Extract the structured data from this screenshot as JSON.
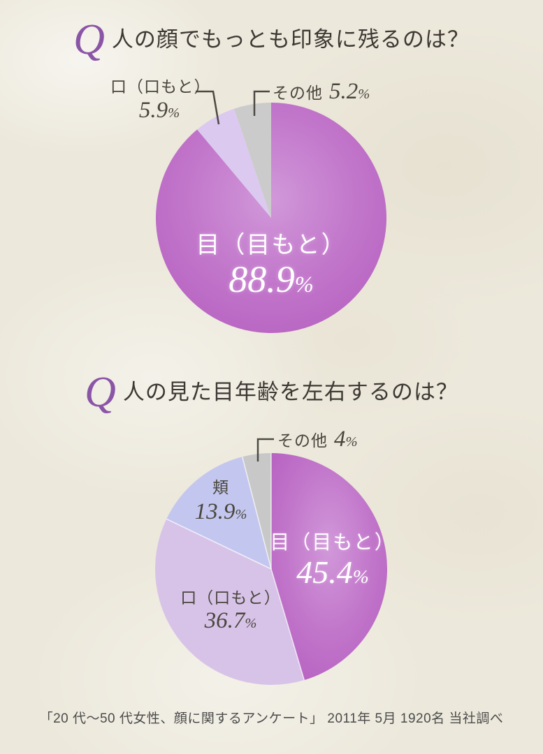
{
  "theme": {
    "background": "#ece8db",
    "title_color": "#3d3833",
    "q_color": "#8a55a7",
    "label_color": "#4a453d",
    "center_text_color": "#ffffff",
    "leader_line_color": "#4d4a45"
  },
  "accent_gradient": [
    "#d198d9",
    "#c277cb",
    "#b763c1"
  ],
  "chart_data": [
    {
      "type": "pie",
      "q_mark": "Q",
      "title": "人の顔でもっとも印象に残るのは？",
      "start_angle": "12-oclock",
      "direction": "clockwise",
      "labels_layout": "largest slice labeled inside, small slices outside with leader lines",
      "slices": [
        {
          "label": "目（目もと）",
          "value": 88.9,
          "number": "88.9",
          "unit": "%",
          "color": "#c06fc8",
          "gradient": true
        },
        {
          "label": "口（口もと）",
          "value": 5.9,
          "number": "5.9",
          "unit": "%",
          "color": "#dbc9f0",
          "gradient": false
        },
        {
          "label": "その他",
          "value": 5.2,
          "number": "5.2",
          "unit": "%",
          "color": "#cbcbcb",
          "gradient": false
        }
      ]
    },
    {
      "type": "pie",
      "q_mark": "Q",
      "title": "人の見た目年齢を左右するのは？",
      "start_angle": "12-oclock",
      "direction": "clockwise",
      "labels_layout": "largest slice labeled inside, others outside; white separators between slices",
      "slices": [
        {
          "label": "目（目もと）",
          "value": 45.4,
          "number": "45.4",
          "unit": "%",
          "color": "#c06fc8",
          "gradient": true
        },
        {
          "label": "口（口もと）",
          "value": 36.7,
          "number": "36.7",
          "unit": "%",
          "color": "#d8c3e8",
          "gradient": false
        },
        {
          "label": "頬",
          "value": 13.9,
          "number": "13.9",
          "unit": "%",
          "color": "#c3c7ef",
          "gradient": false
        },
        {
          "label": "その他",
          "value": 4,
          "number": "4",
          "unit": "%",
          "color": "#c8c8c8",
          "gradient": false
        }
      ]
    }
  ],
  "footer": "「20 代～50 代女性、顔に関するアンケート」 2011年 5月 1920名 当社調べ"
}
